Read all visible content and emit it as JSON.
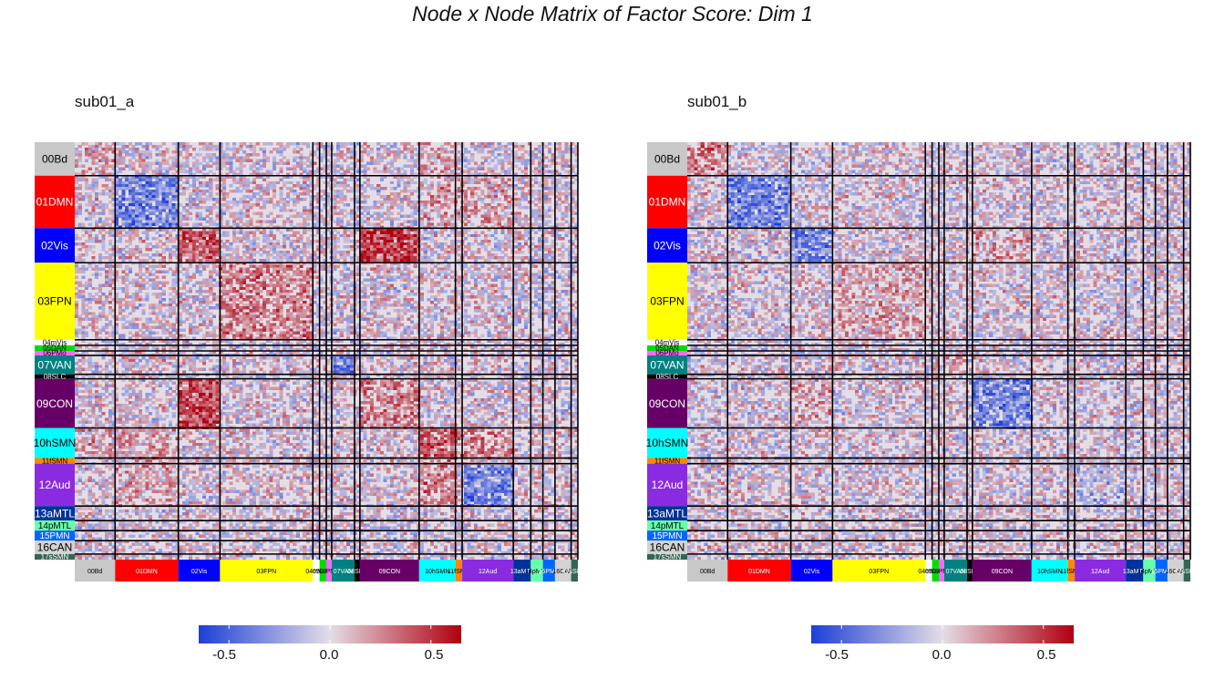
{
  "title": "Node x Node Matrix of Factor Score: Dim 1",
  "colors": {
    "neg": "#1d3fd6",
    "mid": "#e4dde6",
    "pos": "#b00010",
    "grid": "#000000"
  },
  "networks": [
    {
      "label": "00Bd",
      "color": "#c8c8c8",
      "size": 30
    },
    {
      "label": "01DMN",
      "color": "#ff0000",
      "size": 47
    },
    {
      "label": "02Vis",
      "color": "#0000ff",
      "size": 31
    },
    {
      "label": "03FPN",
      "color": "#ffff00",
      "size": 69
    },
    {
      "label": "04mVis",
      "color": "#ffffff",
      "size": 5
    },
    {
      "label": "05DAN",
      "color": "#00dd00",
      "size": 5
    },
    {
      "label": "06PMo",
      "color": "#ff66ff",
      "size": 4
    },
    {
      "label": "07VAN",
      "color": "#008080",
      "size": 17
    },
    {
      "label": "08SLC",
      "color": "#000000",
      "size": 4
    },
    {
      "label": "09CON",
      "color": "#660066",
      "size": 44
    },
    {
      "label": "10hSMN",
      "color": "#00ffff",
      "size": 27
    },
    {
      "label": "11fSMN",
      "color": "#ff8800",
      "size": 5
    },
    {
      "label": "12Aud",
      "color": "#8a2be2",
      "size": 38
    },
    {
      "label": "13aMTL",
      "color": "#003399",
      "size": 13
    },
    {
      "label": "14pMTL",
      "color": "#66ffaa",
      "size": 9
    },
    {
      "label": "15PMN",
      "color": "#0066ff",
      "size": 9
    },
    {
      "label": "16CAN",
      "color": "#d3d3d3",
      "size": 12
    },
    {
      "label": "17sSMN",
      "color": "#336655",
      "size": 5
    }
  ],
  "panels": [
    {
      "title": "sub01_a",
      "seed": 17,
      "bias": [
        [
          0.1,
          0,
          0,
          0,
          0,
          0,
          0,
          0,
          0,
          0,
          0.1,
          0,
          0,
          0,
          0,
          0,
          0,
          0
        ],
        [
          0,
          -0.3,
          0,
          0,
          0,
          0,
          0,
          0,
          0,
          0,
          0.1,
          0.1,
          0.1,
          0,
          0,
          0,
          0,
          0
        ],
        [
          0,
          0,
          0.3,
          0,
          0,
          0,
          0,
          0,
          0,
          0.4,
          0,
          0,
          0,
          0,
          0,
          0,
          0,
          0
        ],
        [
          0,
          0,
          0,
          0.2,
          0,
          0,
          0,
          0,
          0,
          0,
          0,
          0,
          0,
          0,
          0,
          0,
          0,
          0
        ],
        [
          0,
          0,
          0,
          0,
          0,
          0,
          0,
          0,
          0,
          0,
          0,
          0,
          0,
          0,
          0,
          0,
          0,
          0
        ],
        [
          0,
          0,
          0,
          0,
          0,
          0,
          0,
          0,
          0,
          0,
          0,
          0,
          0,
          0,
          0,
          0,
          0,
          0
        ],
        [
          0,
          0,
          0,
          0,
          0,
          0,
          0,
          0,
          0,
          0,
          0,
          0,
          0,
          0,
          0,
          0,
          0,
          0
        ],
        [
          0,
          0,
          0,
          0,
          0,
          0,
          0,
          -0.3,
          0,
          0,
          0,
          0,
          0,
          0,
          0,
          0,
          0,
          0
        ],
        [
          0,
          0,
          0,
          0,
          0,
          0,
          0,
          0,
          0,
          0,
          0,
          0,
          0,
          0,
          0,
          0,
          0,
          0
        ],
        [
          0,
          0,
          0.4,
          0,
          0,
          0,
          0,
          0,
          0,
          0.2,
          0,
          0,
          0,
          0,
          0,
          0,
          0,
          0
        ],
        [
          0.1,
          0.1,
          0,
          0,
          0,
          0,
          0,
          0,
          0,
          0,
          0.3,
          0.2,
          0.2,
          0,
          0,
          0,
          0,
          0
        ],
        [
          0,
          0.1,
          0,
          0,
          0,
          0,
          0,
          0,
          0,
          0,
          0.2,
          0.2,
          0,
          0,
          0,
          0,
          0,
          0
        ],
        [
          0,
          0.1,
          0,
          0,
          0,
          0,
          0,
          0,
          0,
          0,
          0.2,
          0,
          -0.3,
          0,
          0,
          0,
          0,
          0
        ],
        [
          0,
          0,
          0,
          0,
          0,
          0,
          0,
          0,
          0,
          0,
          0,
          0,
          0,
          0,
          0,
          0,
          0,
          0
        ],
        [
          0,
          0,
          0,
          0,
          0,
          0,
          0,
          0,
          0,
          0,
          0,
          0,
          0,
          0,
          0,
          0,
          0,
          0
        ],
        [
          0,
          0,
          0,
          0,
          0,
          0,
          0,
          0,
          0,
          0,
          0,
          0,
          0,
          0,
          0,
          0,
          0,
          0
        ],
        [
          0,
          0,
          0,
          0,
          0,
          0,
          0,
          0,
          0,
          0,
          0,
          0,
          0,
          0,
          0,
          0,
          0,
          0
        ],
        [
          0,
          0,
          0,
          0,
          0,
          0,
          0,
          0,
          0,
          0,
          0,
          0,
          0,
          0,
          0,
          0,
          0,
          0
        ]
      ]
    },
    {
      "title": "sub01_b",
      "seed": 91,
      "bias": [
        [
          0.2,
          0,
          0,
          0,
          0,
          0,
          0,
          0,
          0,
          0,
          0,
          0,
          0,
          0,
          0,
          0,
          0,
          0
        ],
        [
          0,
          -0.3,
          0,
          0,
          0,
          0,
          0,
          0,
          0,
          0,
          0,
          0,
          0,
          0,
          0,
          0,
          0,
          0
        ],
        [
          0,
          0,
          -0.3,
          0,
          0,
          0,
          0,
          0,
          0,
          0.1,
          0,
          0,
          0,
          0,
          0,
          0,
          0,
          0
        ],
        [
          0,
          0,
          0,
          0.1,
          0,
          0,
          0,
          0,
          0,
          0,
          0,
          0,
          0,
          0,
          0,
          0,
          0,
          0
        ],
        [
          0,
          0,
          0,
          0,
          0,
          0,
          0,
          0,
          0,
          0,
          0,
          0,
          0,
          0,
          0,
          0,
          0,
          0
        ],
        [
          0,
          0,
          0,
          0,
          0,
          0,
          0,
          0,
          0,
          0,
          0,
          0,
          0,
          0,
          0,
          0,
          0,
          0
        ],
        [
          0,
          0,
          0,
          0,
          0,
          0,
          0,
          0,
          0,
          0,
          0,
          0,
          0,
          0,
          0,
          0,
          0,
          0
        ],
        [
          0,
          0,
          0,
          0,
          0,
          0,
          0,
          0.1,
          0,
          0,
          0,
          0,
          0,
          0,
          0,
          0,
          0,
          0
        ],
        [
          0,
          0,
          0,
          0,
          0,
          0,
          0,
          0,
          0,
          0,
          0,
          0,
          0,
          0,
          0,
          0,
          0,
          0
        ],
        [
          0,
          0,
          0.1,
          0,
          0,
          0,
          0,
          0,
          0,
          -0.3,
          0,
          0,
          0,
          0,
          0,
          0,
          0,
          0
        ],
        [
          0,
          0,
          0,
          0,
          0,
          0,
          0,
          0,
          0,
          0,
          0,
          0,
          0,
          0,
          0,
          0,
          0,
          0
        ],
        [
          0,
          0,
          0,
          0,
          0,
          0,
          0,
          0,
          0,
          0,
          0,
          0,
          0,
          0,
          0,
          0,
          0,
          0
        ],
        [
          0,
          0,
          0,
          0,
          0,
          0,
          0,
          0,
          0,
          0,
          0,
          0,
          -0.1,
          0,
          0,
          0,
          0,
          0
        ],
        [
          0,
          0,
          0,
          0,
          0,
          0,
          0,
          0,
          0,
          0,
          0,
          0,
          0,
          0,
          0,
          0,
          0,
          0
        ],
        [
          0,
          0,
          0,
          0,
          0,
          0,
          0,
          0,
          0,
          0,
          0,
          0,
          0,
          0,
          0,
          0,
          0,
          0
        ],
        [
          0,
          0,
          0,
          0,
          0,
          0,
          0,
          0,
          0,
          0,
          0,
          0,
          0,
          0,
          0,
          0,
          0,
          0
        ],
        [
          0,
          0,
          0,
          0,
          0,
          0,
          0,
          0,
          0,
          0,
          0,
          0,
          0,
          0,
          0,
          0,
          0,
          0
        ],
        [
          0,
          0,
          0,
          0,
          0,
          0,
          0,
          0,
          0,
          0,
          0,
          0,
          0,
          0,
          0,
          0,
          0,
          0
        ]
      ]
    }
  ],
  "chart_data": [
    {
      "type": "heatmap",
      "title": "sub01_a",
      "row_groups": [
        "00Bd",
        "01DMN",
        "02Vis",
        "03FPN",
        "04mVis",
        "05DAN",
        "06PMo",
        "07VAN",
        "08SLC",
        "09CON",
        "10hSMN",
        "11fSMN",
        "12Aud",
        "13aMTL",
        "14pMTL",
        "15PMN",
        "16CAN",
        "17sSMN"
      ],
      "col_groups": [
        "00Bd",
        "01DMN",
        "02Vis",
        "03FPN",
        "04mVis",
        "05DAN",
        "06PMo",
        "07VAN",
        "08SLC",
        "09CON",
        "10hSMN",
        "11fSMN",
        "12Aud",
        "13aMTL",
        "14pMTL",
        "15PMN",
        "16CAN",
        "17sSMN"
      ],
      "value_range": [
        -0.65,
        0.65
      ],
      "colorbar_ticks": [
        -0.5,
        0.0,
        0.5
      ],
      "colorbar_tick_labels": [
        "-0.5",
        "0.0",
        "0.5"
      ],
      "legend_position": "bottom"
    },
    {
      "type": "heatmap",
      "title": "sub01_b",
      "row_groups": [
        "00Bd",
        "01DMN",
        "02Vis",
        "03FPN",
        "04mVis",
        "05DAN",
        "06PMo",
        "07VAN",
        "08SLC",
        "09CON",
        "10hSMN",
        "11fSMN",
        "12Aud",
        "13aMTL",
        "14pMTL",
        "15PMN",
        "16CAN",
        "17sSMN"
      ],
      "col_groups": [
        "00Bd",
        "01DMN",
        "02Vis",
        "03FPN",
        "04mVis",
        "05DAN",
        "06PMo",
        "07VAN",
        "08SLC",
        "09CON",
        "10hSMN",
        "11fSMN",
        "12Aud",
        "13aMTL",
        "14pMTL",
        "15PMN",
        "16CAN",
        "17sSMN"
      ],
      "value_range": [
        -0.65,
        0.65
      ],
      "colorbar_ticks": [
        -0.5,
        0.0,
        0.5
      ],
      "colorbar_tick_labels": [
        "-0.5",
        "0.0",
        "0.5"
      ],
      "legend_position": "bottom"
    }
  ]
}
